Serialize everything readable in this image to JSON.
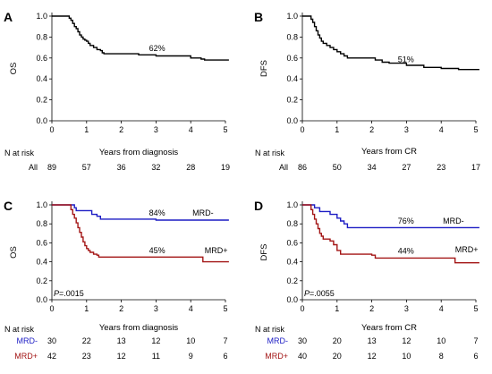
{
  "chart_data": [
    {
      "type": "line",
      "panel": "A",
      "ylabel": "OS",
      "xlabel": "Years from diagnosis",
      "xlim": [
        0,
        5
      ],
      "ylim": [
        0,
        1
      ],
      "x_ticks": [
        "0",
        "1",
        "2",
        "3",
        "4",
        "5"
      ],
      "y_ticks": [
        "0.0",
        "0.2",
        "0.4",
        "0.6",
        "0.8",
        "1.0"
      ],
      "series": [
        {
          "color": "#000000",
          "points": [
            [
              0,
              1.0
            ],
            [
              0.45,
              1.0
            ],
            [
              0.5,
              0.98
            ],
            [
              0.55,
              0.96
            ],
            [
              0.6,
              0.93
            ],
            [
              0.65,
              0.9
            ],
            [
              0.7,
              0.88
            ],
            [
              0.75,
              0.85
            ],
            [
              0.8,
              0.82
            ],
            [
              0.85,
              0.8
            ],
            [
              0.9,
              0.78
            ],
            [
              0.95,
              0.77
            ],
            [
              1.0,
              0.76
            ],
            [
              1.05,
              0.74
            ],
            [
              1.1,
              0.72
            ],
            [
              1.2,
              0.7
            ],
            [
              1.3,
              0.68
            ],
            [
              1.4,
              0.67
            ],
            [
              1.45,
              0.65
            ],
            [
              1.5,
              0.64
            ],
            [
              2.4,
              0.64
            ],
            [
              2.5,
              0.63
            ],
            [
              3.0,
              0.62
            ],
            [
              3.9,
              0.62
            ],
            [
              4.0,
              0.6
            ],
            [
              4.3,
              0.59
            ],
            [
              4.4,
              0.58
            ],
            [
              5.1,
              0.58
            ]
          ]
        }
      ],
      "annotations": [
        {
          "text": "62%",
          "x": 2.8,
          "y": 0.665
        }
      ],
      "risk_title": "N at risk",
      "risk_rows": [
        {
          "label": "All",
          "color": "#000000",
          "values": [
            "89",
            "57",
            "36",
            "32",
            "28",
            "19"
          ]
        }
      ]
    },
    {
      "type": "line",
      "panel": "B",
      "ylabel": "DFS",
      "xlabel": "Years from CR",
      "xlim": [
        0,
        5
      ],
      "ylim": [
        0,
        1
      ],
      "x_ticks": [
        "0",
        "1",
        "2",
        "3",
        "4",
        "5"
      ],
      "y_ticks": [
        "0.0",
        "0.2",
        "0.4",
        "0.6",
        "0.8",
        "1.0"
      ],
      "series": [
        {
          "color": "#000000",
          "points": [
            [
              0,
              1.0
            ],
            [
              0.2,
              1.0
            ],
            [
              0.25,
              0.97
            ],
            [
              0.3,
              0.94
            ],
            [
              0.35,
              0.9
            ],
            [
              0.4,
              0.86
            ],
            [
              0.45,
              0.82
            ],
            [
              0.5,
              0.79
            ],
            [
              0.55,
              0.76
            ],
            [
              0.6,
              0.74
            ],
            [
              0.7,
              0.72
            ],
            [
              0.8,
              0.7
            ],
            [
              0.9,
              0.68
            ],
            [
              1.0,
              0.66
            ],
            [
              1.1,
              0.64
            ],
            [
              1.2,
              0.62
            ],
            [
              1.3,
              0.6
            ],
            [
              2.0,
              0.6
            ],
            [
              2.1,
              0.58
            ],
            [
              2.3,
              0.56
            ],
            [
              2.5,
              0.55
            ],
            [
              3.0,
              0.53
            ],
            [
              3.5,
              0.51
            ],
            [
              4.0,
              0.5
            ],
            [
              4.5,
              0.49
            ],
            [
              5.1,
              0.49
            ]
          ]
        }
      ],
      "annotations": [
        {
          "text": "51%",
          "x": 2.75,
          "y": 0.56
        }
      ],
      "risk_title": "N at risk",
      "risk_rows": [
        {
          "label": "All",
          "color": "#000000",
          "values": [
            "86",
            "50",
            "34",
            "27",
            "23",
            "17"
          ]
        }
      ]
    },
    {
      "type": "line",
      "panel": "C",
      "ylabel": "OS",
      "xlabel": "Years from diagnosis",
      "xlim": [
        0,
        5
      ],
      "ylim": [
        0,
        1
      ],
      "x_ticks": [
        "0",
        "1",
        "2",
        "3",
        "4",
        "5"
      ],
      "y_ticks": [
        "0.0",
        "0.2",
        "0.4",
        "0.6",
        "0.8",
        "1.0"
      ],
      "series": [
        {
          "name": "MRD-",
          "color": "#1c1cc4",
          "points": [
            [
              0,
              1.0
            ],
            [
              0.6,
              1.0
            ],
            [
              0.65,
              0.97
            ],
            [
              0.7,
              0.94
            ],
            [
              1.1,
              0.94
            ],
            [
              1.15,
              0.9
            ],
            [
              1.3,
              0.88
            ],
            [
              1.4,
              0.85
            ],
            [
              2.5,
              0.85
            ],
            [
              3.0,
              0.84
            ],
            [
              5.1,
              0.84
            ]
          ]
        },
        {
          "name": "MRD+",
          "color": "#a31515",
          "points": [
            [
              0,
              1.0
            ],
            [
              0.5,
              1.0
            ],
            [
              0.55,
              0.95
            ],
            [
              0.6,
              0.9
            ],
            [
              0.65,
              0.86
            ],
            [
              0.7,
              0.81
            ],
            [
              0.75,
              0.76
            ],
            [
              0.8,
              0.71
            ],
            [
              0.85,
              0.66
            ],
            [
              0.9,
              0.61
            ],
            [
              0.95,
              0.57
            ],
            [
              1.0,
              0.54
            ],
            [
              1.05,
              0.52
            ],
            [
              1.1,
              0.5
            ],
            [
              1.2,
              0.48
            ],
            [
              1.3,
              0.47
            ],
            [
              1.35,
              0.45
            ],
            [
              4.3,
              0.45
            ],
            [
              4.35,
              0.4
            ],
            [
              5.1,
              0.4
            ]
          ]
        }
      ],
      "annotations": [
        {
          "text": "84%",
          "x": 2.8,
          "y": 0.885
        },
        {
          "text": "45%",
          "x": 2.8,
          "y": 0.49
        },
        {
          "text": "MRD-",
          "x": 4.05,
          "y": 0.885
        },
        {
          "text": "MRD+",
          "x": 4.4,
          "y": 0.49
        }
      ],
      "pvalue_prefix": "P",
      "pvalue_text": "=.0015",
      "risk_title": "N at risk",
      "risk_rows": [
        {
          "label": "MRD-",
          "color": "#1c1cc4",
          "values": [
            "30",
            "22",
            "13",
            "12",
            "10",
            "7"
          ]
        },
        {
          "label": "MRD+",
          "color": "#a31515",
          "values": [
            "42",
            "23",
            "12",
            "11",
            "9",
            "6"
          ]
        }
      ]
    },
    {
      "type": "line",
      "panel": "D",
      "ylabel": "DFS",
      "xlabel": "Years from CR",
      "xlim": [
        0,
        5
      ],
      "ylim": [
        0,
        1
      ],
      "x_ticks": [
        "0",
        "1",
        "2",
        "3",
        "4",
        "5"
      ],
      "y_ticks": [
        "0.0",
        "0.2",
        "0.4",
        "0.6",
        "0.8",
        "1.0"
      ],
      "series": [
        {
          "name": "MRD-",
          "color": "#1c1cc4",
          "points": [
            [
              0,
              1.0
            ],
            [
              0.3,
              1.0
            ],
            [
              0.35,
              0.97
            ],
            [
              0.5,
              0.93
            ],
            [
              0.8,
              0.9
            ],
            [
              1.0,
              0.86
            ],
            [
              1.1,
              0.83
            ],
            [
              1.2,
              0.8
            ],
            [
              1.3,
              0.76
            ],
            [
              5.1,
              0.76
            ]
          ]
        },
        {
          "name": "MRD+",
          "color": "#a31515",
          "points": [
            [
              0,
              1.0
            ],
            [
              0.2,
              1.0
            ],
            [
              0.25,
              0.95
            ],
            [
              0.3,
              0.9
            ],
            [
              0.35,
              0.85
            ],
            [
              0.4,
              0.8
            ],
            [
              0.45,
              0.75
            ],
            [
              0.5,
              0.7
            ],
            [
              0.55,
              0.67
            ],
            [
              0.6,
              0.64
            ],
            [
              0.8,
              0.62
            ],
            [
              0.9,
              0.58
            ],
            [
              1.0,
              0.52
            ],
            [
              1.1,
              0.48
            ],
            [
              2.0,
              0.47
            ],
            [
              2.1,
              0.44
            ],
            [
              4.3,
              0.44
            ],
            [
              4.4,
              0.39
            ],
            [
              5.1,
              0.39
            ]
          ]
        }
      ],
      "annotations": [
        {
          "text": "76%",
          "x": 2.75,
          "y": 0.8
        },
        {
          "text": "44%",
          "x": 2.75,
          "y": 0.485
        },
        {
          "text": "MRD-",
          "x": 4.05,
          "y": 0.8
        },
        {
          "text": "MRD+",
          "x": 4.4,
          "y": 0.5
        }
      ],
      "pvalue_prefix": "P",
      "pvalue_text": "=.0055",
      "risk_title": "N at risk",
      "risk_rows": [
        {
          "label": "MRD-",
          "color": "#1c1cc4",
          "values": [
            "30",
            "20",
            "13",
            "12",
            "10",
            "7"
          ]
        },
        {
          "label": "MRD+",
          "color": "#a31515",
          "values": [
            "40",
            "20",
            "12",
            "10",
            "8",
            "6"
          ]
        }
      ]
    }
  ]
}
